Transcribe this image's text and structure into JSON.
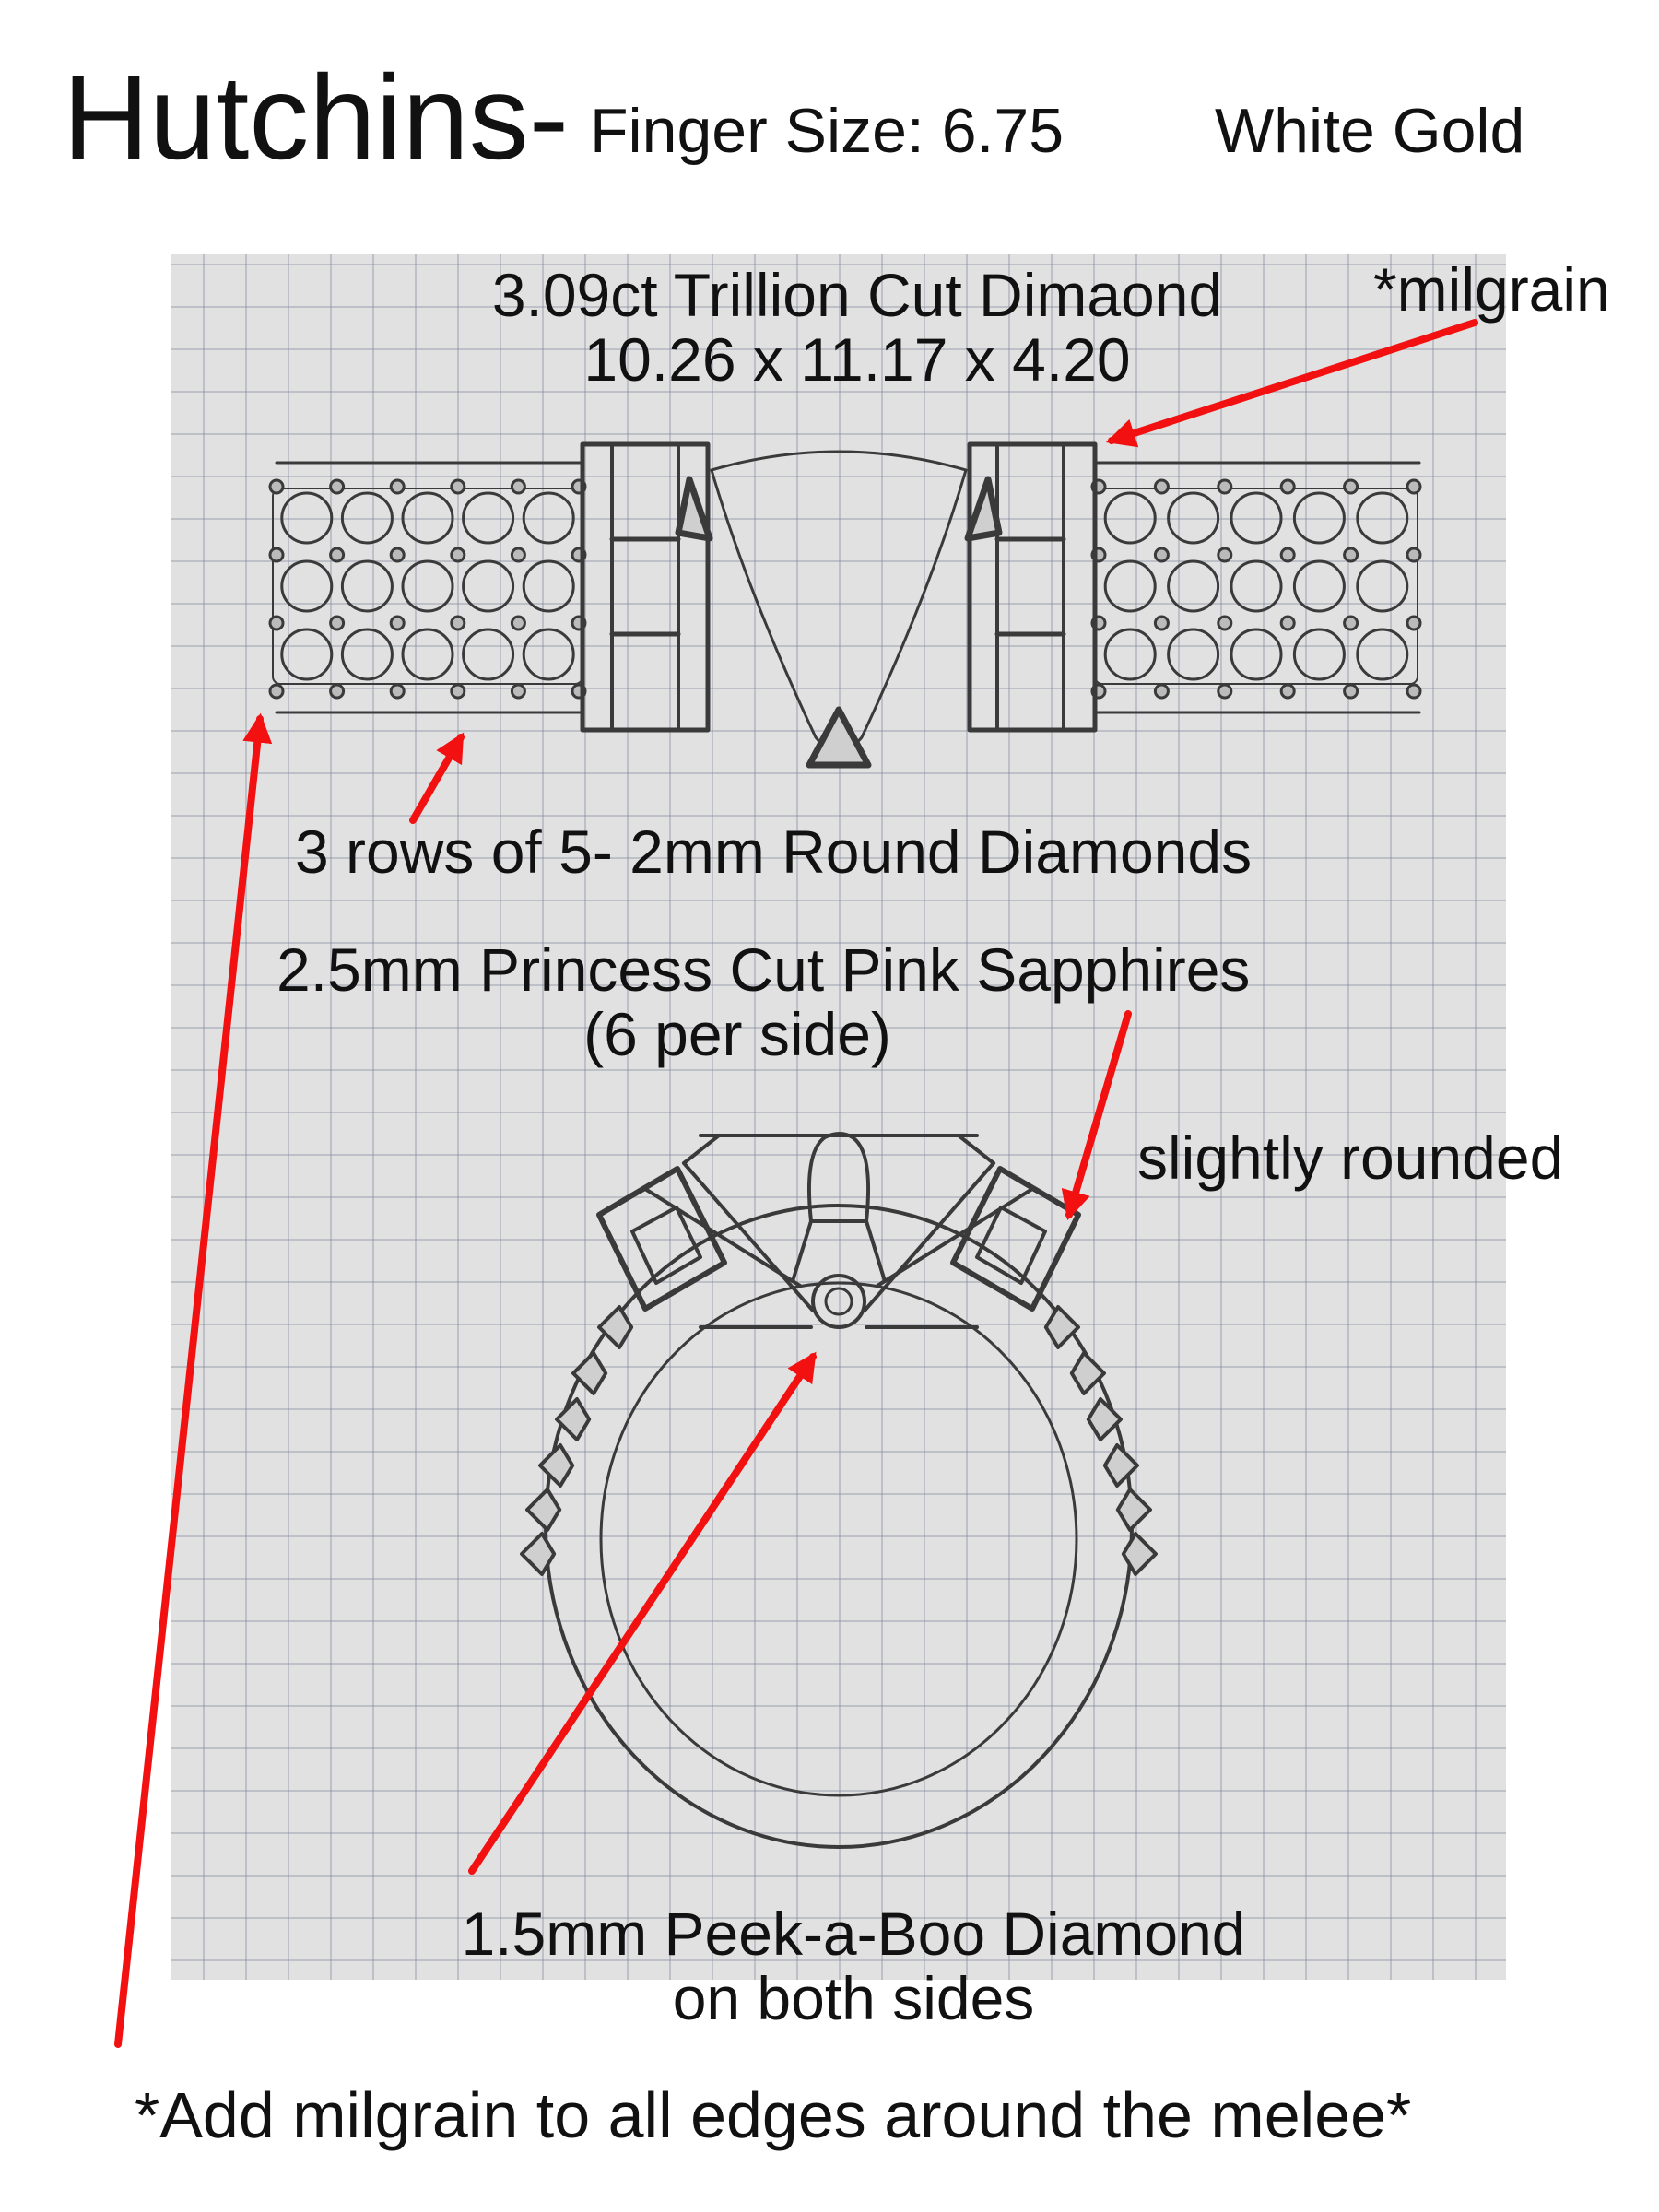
{
  "header": {
    "name": "Hutchins-",
    "finger_size": "Finger Size: 6.75",
    "metal": "White Gold"
  },
  "annotations": {
    "center_stone": [
      "3.09ct Trillion Cut Dimaond",
      "10.26 x 11.17 x 4.20"
    ],
    "milgrain": "*milgrain",
    "melee": "3 rows of 5- 2mm Round Diamonds",
    "sapphires": [
      "2.5mm Princess Cut Pink Sapphires",
      "(6 per side)"
    ],
    "shape_note": "slightly rounded",
    "peek_a_boo": [
      "1.5mm Peek-a-Boo Diamond",
      "on both sides"
    ],
    "footer": "*Add milgrain to all edges around the melee*"
  },
  "colors": {
    "arrow": "#f21010",
    "pencil": "#3a3a3a",
    "paper": "#e1e1e1",
    "grid": "#8c92ab"
  },
  "icons": [
    "arrow-icon",
    "ring-top-view-sketch",
    "ring-side-view-sketch"
  ]
}
